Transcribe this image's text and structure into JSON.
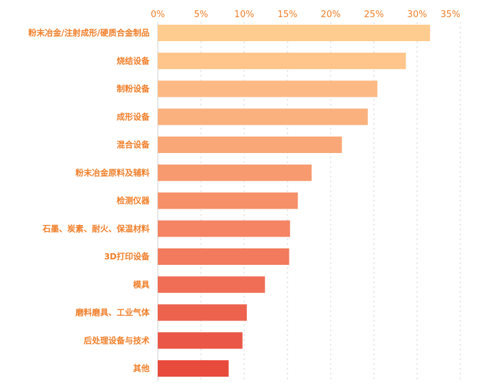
{
  "chart_data": {
    "type": "bar",
    "orientation": "horizontal",
    "title": "",
    "xlabel": "",
    "ylabel": "",
    "xlim": [
      0,
      35
    ],
    "x_ticks": [
      "0%",
      "5%",
      "10%",
      "15%",
      "20%",
      "25%",
      "30%",
      "35%"
    ],
    "x_axis_position": "top",
    "grid": "vertical dashed",
    "legend": "none",
    "categories": [
      "粉末冶金/注射成形/硬质合金制品",
      "烧结设备",
      "制粉设备",
      "成形设备",
      "混合设备",
      "粉末冶金原料及辅料",
      "检测仪器",
      "石墨、炭素、耐火、保温材料",
      "3D打印设备",
      "模具",
      "磨料磨具、工业气体",
      "后处理设备与技术",
      "其他"
    ],
    "values": [
      31.5,
      28.7,
      25.4,
      24.3,
      21.3,
      17.8,
      16.2,
      15.3,
      15.2,
      12.4,
      10.3,
      9.8,
      8.2
    ],
    "bar_colors": [
      "#ffcc8f",
      "#ffc58a",
      "#fdb984",
      "#fbb17e",
      "#f9a777",
      "#f89a6f",
      "#f69068",
      "#f48463",
      "#f27a5d",
      "#ef6e55",
      "#ec624d",
      "#ea5746",
      "#e84a3c"
    ],
    "tick_color": "#f07f2a"
  }
}
